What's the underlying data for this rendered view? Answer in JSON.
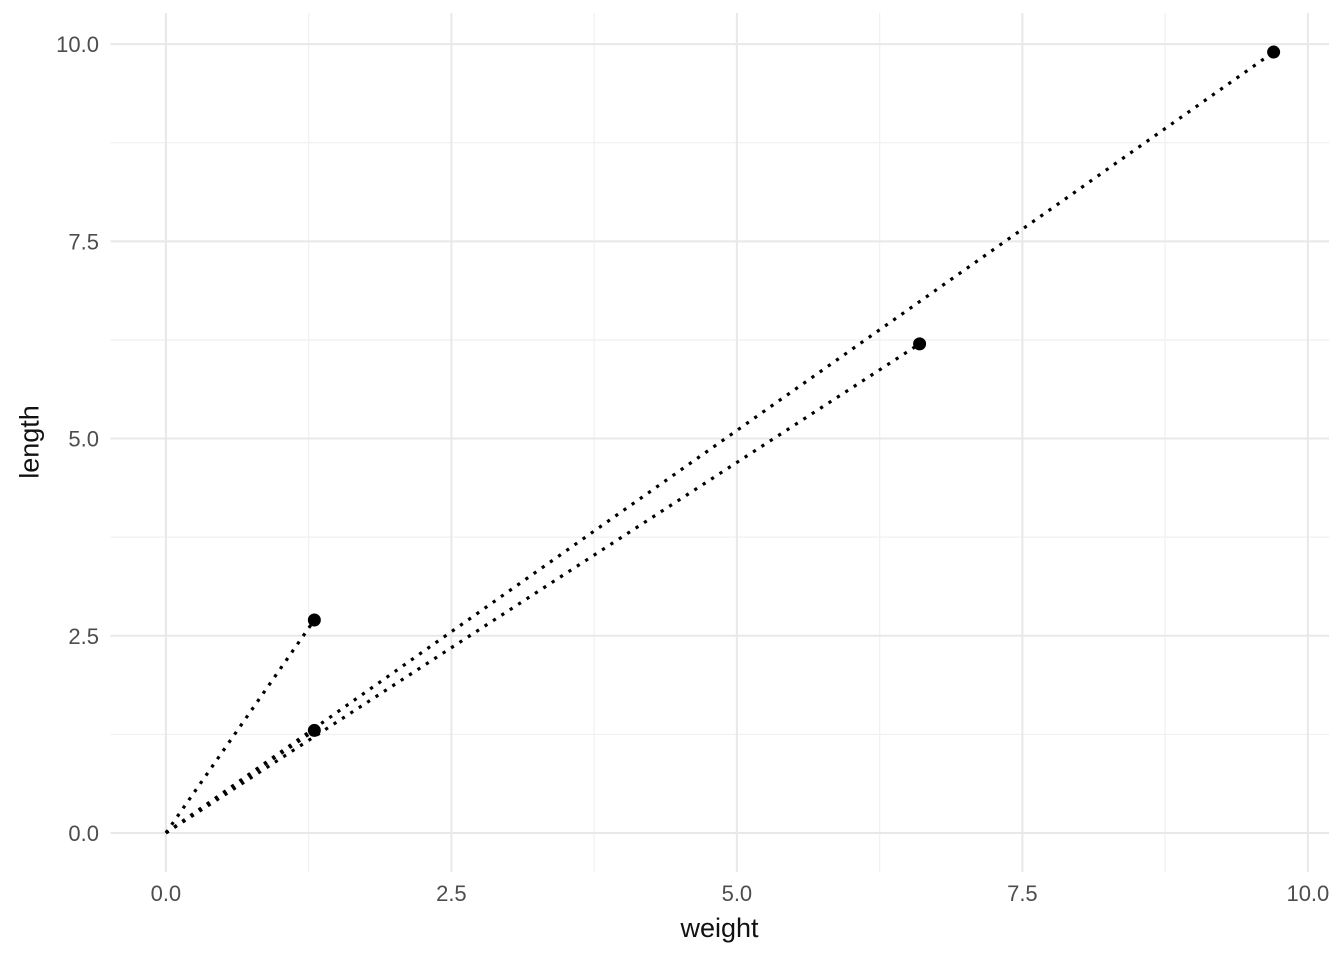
{
  "chart_data": {
    "type": "scatter",
    "title": "",
    "xlabel": "weight",
    "ylabel": "length",
    "x_ticks": [
      0.0,
      2.5,
      5.0,
      7.5,
      10.0
    ],
    "y_ticks": [
      0.0,
      2.5,
      5.0,
      7.5,
      10.0
    ],
    "x_minor_ticks": [
      1.25,
      3.75,
      6.25,
      8.75
    ],
    "y_minor_ticks": [
      1.25,
      3.75,
      6.25,
      8.75
    ],
    "tick_label_format_decimals": 1,
    "xlim": [
      -0.485,
      10.185
    ],
    "ylim": [
      -0.495,
      10.395
    ],
    "grid": true,
    "legend": false,
    "points": [
      {
        "weight": 1.3,
        "length": 2.7
      },
      {
        "weight": 1.3,
        "length": 1.3
      },
      {
        "weight": 6.6,
        "length": 6.2
      },
      {
        "weight": 9.7,
        "length": 9.9
      }
    ],
    "segments": [
      {
        "from": [
          0,
          0
        ],
        "to": [
          1.3,
          2.7
        ],
        "style": "dotted"
      },
      {
        "from": [
          0,
          0
        ],
        "to": [
          1.3,
          1.3
        ],
        "style": "dotted"
      },
      {
        "from": [
          0,
          0
        ],
        "to": [
          6.6,
          6.2
        ],
        "style": "dotted"
      },
      {
        "from": [
          0,
          0
        ],
        "to": [
          9.7,
          9.9
        ],
        "style": "dotted"
      }
    ],
    "colors": {
      "background": "#ffffff",
      "point": "#000000",
      "segment": "#000000",
      "grid_major": "#e8e8e8",
      "grid_minor": "#f1f1f1",
      "tick_label": "#4d4d4d",
      "axis_title": "#111111"
    }
  }
}
